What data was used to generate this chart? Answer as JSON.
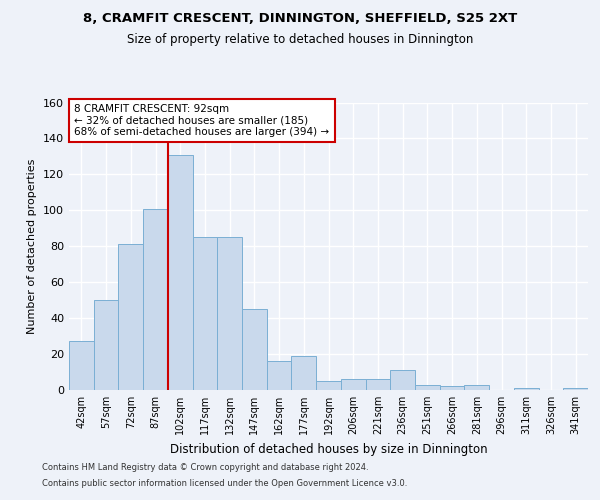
{
  "title1": "8, CRAMFIT CRESCENT, DINNINGTON, SHEFFIELD, S25 2XT",
  "title2": "Size of property relative to detached houses in Dinnington",
  "xlabel": "Distribution of detached houses by size in Dinnington",
  "ylabel": "Number of detached properties",
  "categories": [
    "42sqm",
    "57sqm",
    "72sqm",
    "87sqm",
    "102sqm",
    "117sqm",
    "132sqm",
    "147sqm",
    "162sqm",
    "177sqm",
    "192sqm",
    "206sqm",
    "221sqm",
    "236sqm",
    "251sqm",
    "266sqm",
    "281sqm",
    "296sqm",
    "311sqm",
    "326sqm",
    "341sqm"
  ],
  "values": [
    27,
    50,
    81,
    101,
    131,
    85,
    85,
    45,
    16,
    19,
    5,
    6,
    6,
    11,
    3,
    2,
    3,
    0,
    1,
    0,
    1
  ],
  "bar_color": "#c9d9ec",
  "bar_edge_color": "#7aafd4",
  "vline_x": 3.5,
  "annotation_line1": "8 CRAMFIT CRESCENT: 92sqm",
  "annotation_line2": "← 32% of detached houses are smaller (185)",
  "annotation_line3": "68% of semi-detached houses are larger (394) →",
  "annotation_box_color": "#ffffff",
  "annotation_box_edge_color": "#cc0000",
  "footer1": "Contains HM Land Registry data © Crown copyright and database right 2024.",
  "footer2": "Contains public sector information licensed under the Open Government Licence v3.0.",
  "background_color": "#eef2f9",
  "grid_color": "#ffffff",
  "ylim": [
    0,
    160
  ],
  "yticks": [
    0,
    20,
    40,
    60,
    80,
    100,
    120,
    140,
    160
  ]
}
